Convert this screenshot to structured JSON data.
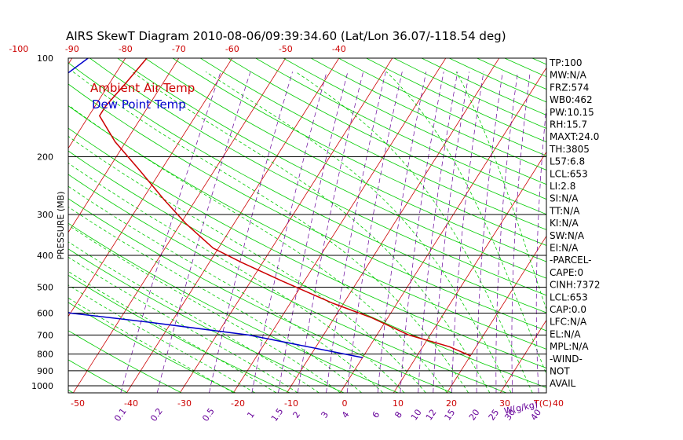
{
  "chart_data": {
    "type": "line",
    "title": "AIRS SkewT Diagram 2010-08-06/09:39:34.60 (Lat/Lon 36.07/-118.54 deg)",
    "ylabel": "PRESSURE (MB)",
    "x_unit_label": "T(C)",
    "mixing_ratio_unit_label": "W(g/kg)",
    "y_ticks": [
      "100",
      "200",
      "300",
      "400",
      "500",
      "600",
      "700",
      "800",
      "900",
      "1000"
    ],
    "top_temp_ticks": [
      "-120",
      "-110",
      "-100",
      "-90",
      "-80",
      "-70",
      "-60",
      "-50",
      "-40"
    ],
    "bottom_temp_ticks": [
      "-50",
      "-40",
      "-30",
      "-20",
      "-10",
      "0",
      "10",
      "20",
      "30",
      "40"
    ],
    "mixing_ratio_ticks": [
      "0.1",
      "0.2",
      "0.5",
      "1",
      "1.5",
      "2",
      "3",
      "4",
      "6",
      "8",
      "10",
      "12",
      "15",
      "20",
      "25",
      "30",
      "40"
    ],
    "legend": [
      "Ambient Air Temp",
      "Dew Point Temp"
    ],
    "colors": {
      "ambient": "#cc0000",
      "dewpoint": "#0000cc",
      "isotherm": "#cc0000",
      "dry_adiabat": "#00cc00",
      "moist_adiabat": "#00cc00",
      "mixing_ratio": "#660099",
      "isobar": "#000000"
    },
    "series": [
      {
        "name": "Ambient Air Temp",
        "points": [
          {
            "p": 100,
            "t": -76
          },
          {
            "p": 120,
            "t": -77
          },
          {
            "p": 140,
            "t": -78
          },
          {
            "p": 150,
            "t": -78
          },
          {
            "p": 180,
            "t": -72
          },
          {
            "p": 220,
            "t": -64
          },
          {
            "p": 270,
            "t": -56
          },
          {
            "p": 320,
            "t": -49
          },
          {
            "p": 380,
            "t": -41
          },
          {
            "p": 420,
            "t": -34
          },
          {
            "p": 480,
            "t": -24
          },
          {
            "p": 560,
            "t": -12
          },
          {
            "p": 620,
            "t": -3
          },
          {
            "p": 700,
            "t": 6
          },
          {
            "p": 760,
            "t": 15
          },
          {
            "p": 810,
            "t": 20
          }
        ]
      },
      {
        "name": "Dew Point Temp",
        "points": [
          {
            "p": 100,
            "t": -87
          },
          {
            "p": 130,
            "t": -92
          },
          {
            "p": 160,
            "t": -97
          },
          {
            "p": 200,
            "t": -100
          },
          {
            "p": 250,
            "t": -99
          },
          {
            "p": 300,
            "t": -97
          },
          {
            "p": 400,
            "t": -90
          },
          {
            "p": 500,
            "t": -79
          },
          {
            "p": 600,
            "t": -60
          },
          {
            "p": 640,
            "t": -44
          },
          {
            "p": 700,
            "t": -24
          },
          {
            "p": 820,
            "t": 0
          }
        ]
      }
    ],
    "indices": [
      "TP:100",
      "MW:N/A",
      "FRZ:574",
      "WB0:462",
      "PW:10.15",
      "RH:15.7",
      "MAXT:24.0",
      "TH:3805",
      "L57:6.8",
      "LCL:653",
      "LI:2.8",
      "SI:N/A",
      "TT:N/A",
      "KI:N/A",
      "SW:N/A",
      "EI:N/A",
      "-PARCEL-",
      "CAPE:0",
      "CINH:7372",
      "LCL:653",
      "CAP:0.0",
      "LFC:N/A",
      "EL:N/A",
      "MPL:N/A",
      "-WIND-",
      "NOT",
      "AVAIL"
    ]
  }
}
